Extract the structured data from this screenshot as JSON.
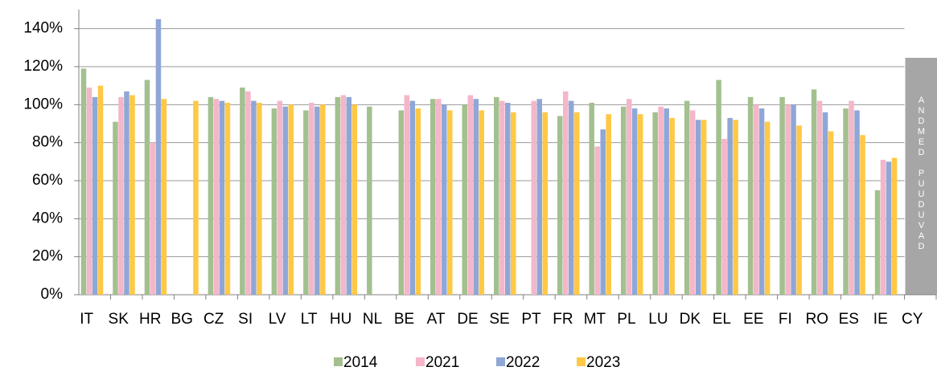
{
  "chart_data": {
    "type": "bar",
    "categories": [
      "IT",
      "SK",
      "HR",
      "BG",
      "CZ",
      "SI",
      "LV",
      "LT",
      "HU",
      "NL",
      "BE",
      "AT",
      "DE",
      "SE",
      "PT",
      "FR",
      "MT",
      "PL",
      "LU",
      "DK",
      "EL",
      "EE",
      "FI",
      "RO",
      "ES",
      "IE",
      "CY"
    ],
    "series": [
      {
        "name": "2014",
        "color": "#a3c08f",
        "values": [
          119,
          91,
          113,
          null,
          104,
          109,
          98,
          97,
          104,
          99,
          97,
          103,
          100,
          104,
          null,
          94,
          101,
          99,
          96,
          102,
          113,
          104,
          104,
          108,
          98,
          55,
          null
        ]
      },
      {
        "name": "2021",
        "color": "#f4b6c8",
        "values": [
          109,
          104,
          80,
          null,
          103,
          107,
          102,
          101,
          105,
          null,
          105,
          103,
          105,
          102,
          102,
          107,
          78,
          103,
          99,
          97,
          82,
          100,
          100,
          102,
          102,
          71,
          null
        ]
      },
      {
        "name": "2022",
        "color": "#8fa7d6",
        "values": [
          104,
          107,
          145,
          null,
          102,
          102,
          99,
          99,
          104,
          null,
          102,
          100,
          103,
          101,
          103,
          102,
          87,
          98,
          98,
          92,
          93,
          98,
          100,
          96,
          97,
          70,
          null
        ]
      },
      {
        "name": "2023",
        "color": "#ffc845",
        "values": [
          110,
          105,
          103,
          102,
          101,
          101,
          100,
          100,
          100,
          null,
          98,
          97,
          97,
          96,
          96,
          96,
          95,
          95,
          93,
          92,
          92,
          91,
          89,
          86,
          84,
          72,
          null
        ]
      }
    ],
    "ylim": [
      0,
      150
    ],
    "yticks": [
      {
        "value": 0,
        "label": "0%"
      },
      {
        "value": 20,
        "label": "20%"
      },
      {
        "value": 40,
        "label": "40%"
      },
      {
        "value": 60,
        "label": "60%"
      },
      {
        "value": 80,
        "label": "80%"
      },
      {
        "value": 100,
        "label": "100%"
      },
      {
        "value": 120,
        "label": "120%"
      },
      {
        "value": 140,
        "label": "140%"
      }
    ],
    "grid": true,
    "annotation": "ANDMED PUUDUVAD"
  }
}
